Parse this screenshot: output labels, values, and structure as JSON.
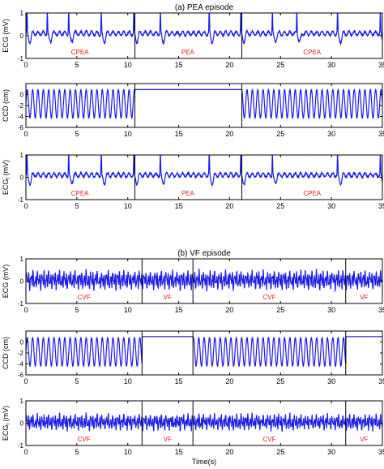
{
  "chart_data": [
    {
      "type": "line",
      "title": "(a) PEA episode",
      "ylabel": "ECG (mV)",
      "xlim": [
        0,
        35
      ],
      "ylim": [
        -1,
        1
      ],
      "xticks": [
        "0",
        "5",
        "10",
        "15",
        "20",
        "25",
        "30",
        "35"
      ],
      "yticks": [
        "1",
        "0",
        "-1"
      ],
      "boundaries": [
        10.7,
        21.2
      ],
      "segment_labels": [
        {
          "text": "CPEA",
          "x": 5.3
        },
        {
          "text": "PEA",
          "x": 15.9
        },
        {
          "text": "CPEA",
          "x": 28.1
        }
      ],
      "signal": {
        "kind": "ecg_pea",
        "beat_times": [
          0.1,
          2.1,
          4.2,
          7.4,
          10.6,
          13.2,
          18.0,
          21.1,
          24.2,
          26.6,
          30.6,
          34.8
        ],
        "mid": 0.1,
        "amp": 0.2
      }
    },
    {
      "type": "line",
      "ylabel": "CCD (cm)",
      "xlim": [
        0,
        35
      ],
      "ylim": [
        -6,
        2
      ],
      "xticks": [
        "0",
        "5",
        "10",
        "15",
        "20",
        "25",
        "30",
        "35"
      ],
      "yticks": [
        "0",
        "-2",
        "-4",
        "-6"
      ],
      "boundaries": [
        10.7,
        21.2
      ],
      "segment_labels": [],
      "signal": {
        "kind": "ccd",
        "active": [
          [
            0,
            10.7
          ],
          [
            21.2,
            35
          ]
        ],
        "rest": 0.9,
        "amp": 2.6,
        "center": -1.7,
        "freq": 1.9
      }
    },
    {
      "type": "line",
      "ylabel": "ECG_f (mV)",
      "xlim": [
        0,
        35
      ],
      "ylim": [
        -1,
        1
      ],
      "xticks": [
        "0",
        "5",
        "10",
        "15",
        "20",
        "25",
        "30",
        "35"
      ],
      "yticks": [
        "1",
        "0",
        "-1"
      ],
      "boundaries": [
        10.7,
        21.2
      ],
      "segment_labels": [
        {
          "text": "CPEA",
          "x": 5.3
        },
        {
          "text": "PEA",
          "x": 15.9
        },
        {
          "text": "CPEA",
          "x": 28.1
        }
      ],
      "signal": {
        "kind": "ecg_pea",
        "beat_times": [
          0.1,
          4.2,
          7.4,
          10.6,
          13.2,
          18.0,
          21.1,
          24.2,
          30.6,
          34.8
        ],
        "mid": 0.1,
        "amp": 0.2
      }
    },
    {
      "type": "line",
      "title": "(b) VF episode",
      "ylabel": "ECG (mV)",
      "xlim": [
        0,
        35
      ],
      "ylim": [
        -1,
        1
      ],
      "xticks": [
        "0",
        "5",
        "10",
        "15",
        "20",
        "25",
        "30",
        "35"
      ],
      "yticks": [
        "1",
        "0",
        "-1"
      ],
      "boundaries": [
        11.4,
        16.4,
        31.4
      ],
      "segment_labels": [
        {
          "text": "CVF",
          "x": 5.7
        },
        {
          "text": "VF",
          "x": 13.9
        },
        {
          "text": "CVF",
          "x": 23.9
        },
        {
          "text": "VF",
          "x": 33.2
        }
      ],
      "signal": {
        "kind": "vf",
        "mid": 0.05,
        "amp": 0.42
      }
    },
    {
      "type": "line",
      "ylabel": "CCD (cm)",
      "xlim": [
        0,
        35
      ],
      "ylim": [
        -6,
        2
      ],
      "xticks": [
        "0",
        "5",
        "10",
        "15",
        "20",
        "25",
        "30",
        "35"
      ],
      "yticks": [
        "0",
        "-2",
        "-4",
        "-6"
      ],
      "boundaries": [
        11.4,
        16.4,
        31.4
      ],
      "segment_labels": [],
      "signal": {
        "kind": "ccd",
        "active": [
          [
            0,
            11.4
          ],
          [
            16.4,
            31.4
          ]
        ],
        "rest": 1.0,
        "amp": 2.6,
        "center": -1.8,
        "freq": 1.9
      }
    },
    {
      "type": "line",
      "ylabel": "ECG_f (mV)",
      "xlabel": "Time(s)",
      "xlim": [
        0,
        35
      ],
      "ylim": [
        -1,
        1
      ],
      "xticks": [
        "0",
        "5",
        "10",
        "15",
        "20",
        "25",
        "30",
        "35"
      ],
      "yticks": [
        "1",
        "0",
        "-1"
      ],
      "boundaries": [
        11.4,
        16.4,
        31.4
      ],
      "segment_labels": [
        {
          "text": "CVF",
          "x": 5.7
        },
        {
          "text": "VF",
          "x": 13.9
        },
        {
          "text": "CVF",
          "x": 23.9
        },
        {
          "text": "VF",
          "x": 33.2
        }
      ],
      "signal": {
        "kind": "vf",
        "mid": 0.05,
        "amp": 0.35
      }
    }
  ],
  "colors": {
    "signal": "#1a1ae6",
    "segment_label": "#e02020",
    "axis": "#000000"
  }
}
